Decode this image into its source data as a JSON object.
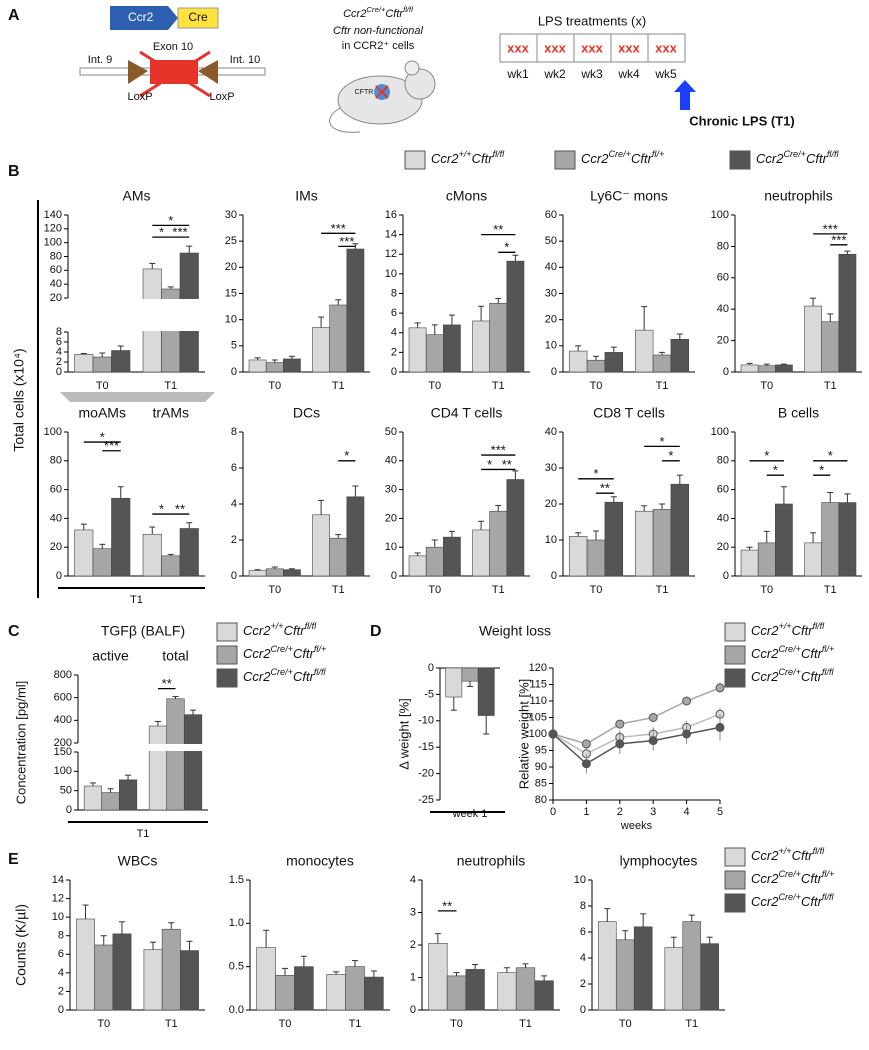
{
  "panel_labels": [
    "A",
    "B",
    "C",
    "D",
    "E"
  ],
  "panel_a": {
    "ccr2": "Ccr2",
    "cre": "Cre",
    "exon": "Exon 10",
    "int9": "Int. 9",
    "int10": "Int. 10",
    "loxp": [
      "LoxP",
      "LoxP"
    ],
    "genotype": "Ccr2Cre/+Cftrfl/fl",
    "line2": "Cftr non-functional",
    "line3": "in CCR2⁺ cells",
    "mouse_label": "CFTR",
    "lps_title": "LPS treatments (x)",
    "lps_marks": [
      "xxx",
      "xxx",
      "xxx",
      "xxx",
      "xxx"
    ],
    "weeks": [
      "wk1",
      "wk2",
      "wk3",
      "wk4",
      "wk5"
    ],
    "chronic": "Chronic LPS (T1)"
  },
  "genotypes": [
    {
      "name": "Ccr2+/+Cftrfl/fl",
      "color": "#d9d9d9"
    },
    {
      "name": "Ccr2Cre/+Cftrfl/+",
      "color": "#a6a6a6"
    },
    {
      "name": "Ccr2Cre/+Cftrfl/fl",
      "color": "#555555"
    }
  ],
  "panel_b_ylabel": "Total cells (x10⁴)",
  "panel_e_ylabel": "Counts (K/µl)",
  "chart_data": [
    {
      "type": "bar",
      "title": "AMs",
      "categories": [
        "T0",
        "T1"
      ],
      "ysegments": [
        {
          "ylim": [
            0,
            8
          ],
          "yticks": [
            0,
            2,
            4,
            6,
            8
          ]
        },
        {
          "ylim": [
            20,
            140
          ],
          "yticks": [
            20,
            40,
            60,
            80,
            100,
            120,
            140
          ]
        }
      ],
      "series": [
        {
          "values": [
            3.5,
            62
          ],
          "errors": [
            0.2,
            8
          ]
        },
        {
          "values": [
            3.0,
            33
          ],
          "errors": [
            0.8,
            3
          ]
        },
        {
          "values": [
            4.3,
            85
          ],
          "errors": [
            0.9,
            10
          ]
        }
      ],
      "annotations": [
        {
          "text": "*",
          "category": 1,
          "from": 0,
          "to": 2,
          "y": 125
        },
        {
          "text": "*",
          "category": 1,
          "from": 0,
          "to": 1,
          "y": 108
        },
        {
          "text": "***",
          "category": 1,
          "from": 1,
          "to": 2,
          "y": 108
        }
      ]
    },
    {
      "type": "bar",
      "title": "IMs",
      "categories": [
        "T0",
        "T1"
      ],
      "ylim": [
        0,
        30
      ],
      "yticks": [
        0,
        5,
        10,
        15,
        20,
        25,
        30
      ],
      "series": [
        {
          "values": [
            2.3,
            8.5
          ],
          "errors": [
            0.4,
            2
          ]
        },
        {
          "values": [
            1.8,
            12.8
          ],
          "errors": [
            0.5,
            1
          ]
        },
        {
          "values": [
            2.5,
            23.5
          ],
          "errors": [
            0.5,
            1
          ]
        }
      ],
      "annotations": [
        {
          "text": "***",
          "category": 1,
          "from": 0,
          "to": 2,
          "y": 26.5
        },
        {
          "text": "***",
          "category": 1,
          "from": 1,
          "to": 2,
          "y": 24
        }
      ]
    },
    {
      "type": "bar",
      "title": "cMons",
      "categories": [
        "T0",
        "T1"
      ],
      "ylim": [
        0,
        16
      ],
      "yticks": [
        0,
        2,
        4,
        6,
        8,
        10,
        12,
        14,
        16
      ],
      "series": [
        {
          "values": [
            4.5,
            5.2
          ],
          "errors": [
            0.5,
            1.5
          ]
        },
        {
          "values": [
            3.8,
            7.0
          ],
          "errors": [
            1,
            0.5
          ]
        },
        {
          "values": [
            4.8,
            11.3
          ],
          "errors": [
            1,
            0.6
          ]
        }
      ],
      "annotations": [
        {
          "text": "**",
          "category": 1,
          "from": 0,
          "to": 2,
          "y": 14
        },
        {
          "text": "*",
          "category": 1,
          "from": 1,
          "to": 2,
          "y": 12.2
        }
      ]
    },
    {
      "type": "bar",
      "title": "Ly6C⁻ mons",
      "categories": [
        "T0",
        "T1"
      ],
      "ylim": [
        0,
        60
      ],
      "yticks": [
        0,
        10,
        20,
        30,
        40,
        50,
        60
      ],
      "series": [
        {
          "values": [
            8,
            16
          ],
          "errors": [
            2,
            9
          ]
        },
        {
          "values": [
            4.5,
            6.5
          ],
          "errors": [
            1.5,
            1
          ]
        },
        {
          "values": [
            7.5,
            12.5
          ],
          "errors": [
            2,
            2
          ]
        }
      ],
      "annotations": []
    },
    {
      "type": "bar",
      "title": "neutrophils",
      "categories": [
        "T0",
        "T1"
      ],
      "ylim": [
        0,
        100
      ],
      "yticks": [
        0,
        20,
        40,
        60,
        80,
        100
      ],
      "series": [
        {
          "values": [
            4.5,
            42
          ],
          "errors": [
            1,
            5
          ]
        },
        {
          "values": [
            4,
            32
          ],
          "errors": [
            1,
            5
          ]
        },
        {
          "values": [
            4.5,
            75
          ],
          "errors": [
            0.5,
            2
          ]
        }
      ],
      "annotations": [
        {
          "text": "***",
          "category": 1,
          "from": 0,
          "to": 2,
          "y": 88
        },
        {
          "text": "***",
          "category": 1,
          "from": 1,
          "to": 2,
          "y": 81
        }
      ]
    },
    {
      "type": "bar",
      "categories": [
        "moAMs",
        "trAMs"
      ],
      "group_label": "T1",
      "ylim": [
        0,
        100
      ],
      "yticks": [
        0,
        20,
        40,
        60,
        80,
        100
      ],
      "series": [
        {
          "values": [
            32,
            29
          ],
          "errors": [
            4,
            5
          ]
        },
        {
          "values": [
            19,
            14
          ],
          "errors": [
            3,
            1
          ]
        },
        {
          "values": [
            54,
            33
          ],
          "errors": [
            8,
            4
          ]
        }
      ],
      "annotations": [
        {
          "text": "*",
          "category": 0,
          "from": 0,
          "to": 2,
          "y": 93
        },
        {
          "text": "***",
          "category": 0,
          "from": 1,
          "to": 2,
          "y": 87
        },
        {
          "text": "*",
          "category": 1,
          "from": 0,
          "to": 1,
          "y": 43
        },
        {
          "text": "**",
          "category": 1,
          "from": 1,
          "to": 2,
          "y": 43
        }
      ]
    },
    {
      "type": "bar",
      "title": "DCs",
      "categories": [
        "T0",
        "T1"
      ],
      "ylim": [
        0,
        8
      ],
      "yticks": [
        0,
        2,
        4,
        6,
        8
      ],
      "series": [
        {
          "values": [
            0.3,
            3.4
          ],
          "errors": [
            0.05,
            0.8
          ]
        },
        {
          "values": [
            0.4,
            2.1
          ],
          "errors": [
            0.1,
            0.2
          ]
        },
        {
          "values": [
            0.35,
            4.4
          ],
          "errors": [
            0.05,
            0.6
          ]
        }
      ],
      "annotations": [
        {
          "text": "*",
          "category": 1,
          "from": 1,
          "to": 2,
          "y": 6.4
        }
      ]
    },
    {
      "type": "bar",
      "title": "CD4 T cells",
      "categories": [
        "T0",
        "T1"
      ],
      "ylim": [
        0,
        50
      ],
      "yticks": [
        0,
        10,
        20,
        30,
        40,
        50
      ],
      "series": [
        {
          "values": [
            7,
            16
          ],
          "errors": [
            1,
            3
          ]
        },
        {
          "values": [
            10,
            22.5
          ],
          "errors": [
            2.5,
            2
          ]
        },
        {
          "values": [
            13.5,
            33.5
          ],
          "errors": [
            2,
            3
          ]
        }
      ],
      "annotations": [
        {
          "text": "***",
          "category": 1,
          "from": 0,
          "to": 2,
          "y": 42
        },
        {
          "text": "*",
          "category": 1,
          "from": 0,
          "to": 1,
          "y": 37
        },
        {
          "text": "**",
          "category": 1,
          "from": 1,
          "to": 2,
          "y": 37
        }
      ]
    },
    {
      "type": "bar",
      "title": "CD8 T cells",
      "categories": [
        "T0",
        "T1"
      ],
      "ylim": [
        0,
        40
      ],
      "yticks": [
        0,
        10,
        20,
        30,
        40
      ],
      "series": [
        {
          "values": [
            11,
            18
          ],
          "errors": [
            1,
            1.5
          ]
        },
        {
          "values": [
            10,
            18.5
          ],
          "errors": [
            2.5,
            1.5
          ]
        },
        {
          "values": [
            20.5,
            25.5
          ],
          "errors": [
            1.5,
            2.5
          ]
        }
      ],
      "annotations": [
        {
          "text": "*",
          "category": 0,
          "from": 0,
          "to": 2,
          "y": 27
        },
        {
          "text": "**",
          "category": 0,
          "from": 1,
          "to": 2,
          "y": 23
        },
        {
          "text": "*",
          "category": 1,
          "from": 0,
          "to": 2,
          "y": 36
        },
        {
          "text": "*",
          "category": 1,
          "from": 1,
          "to": 2,
          "y": 32
        }
      ]
    },
    {
      "type": "bar",
      "title": "B cells",
      "categories": [
        "T0",
        "T1"
      ],
      "ylim": [
        0,
        100
      ],
      "yticks": [
        0,
        20,
        40,
        60,
        80,
        100
      ],
      "series": [
        {
          "values": [
            18,
            23
          ],
          "errors": [
            2,
            7
          ]
        },
        {
          "values": [
            23,
            51
          ],
          "errors": [
            8,
            7
          ]
        },
        {
          "values": [
            50,
            51
          ],
          "errors": [
            12,
            6
          ]
        }
      ],
      "annotations": [
        {
          "text": "*",
          "category": 0,
          "from": 0,
          "to": 2,
          "y": 80
        },
        {
          "text": "*",
          "category": 0,
          "from": 1,
          "to": 2,
          "y": 70
        },
        {
          "text": "*",
          "category": 1,
          "from": 0,
          "to": 2,
          "y": 80
        },
        {
          "text": "*",
          "category": 1,
          "from": 0,
          "to": 1,
          "y": 70
        }
      ]
    },
    {
      "type": "bar",
      "title": "TGFβ (BALF)",
      "ylabel": "Concentration [pg/ml]",
      "categories": [
        "active",
        "total"
      ],
      "group_label": "T1",
      "ysegments": [
        {
          "ylim": [
            0,
            150
          ],
          "yticks": [
            0,
            50,
            100,
            150
          ]
        },
        {
          "ylim": [
            200,
            800
          ],
          "yticks": [
            200,
            400,
            600,
            800
          ]
        }
      ],
      "series": [
        {
          "values": [
            62,
            350
          ],
          "errors": [
            8,
            40
          ]
        },
        {
          "values": [
            45,
            590
          ],
          "errors": [
            10,
            20
          ]
        },
        {
          "values": [
            78,
            450
          ],
          "errors": [
            12,
            40
          ]
        }
      ],
      "annotations": [
        {
          "text": "**",
          "category": 1,
          "from": 0,
          "to": 1,
          "y": 680
        }
      ]
    },
    {
      "type": "bar",
      "title": "Weight loss",
      "ylabel": "Δ weight [%]",
      "categories": [
        "week 1"
      ],
      "ylim": [
        -25,
        0
      ],
      "yticks": [
        0,
        -5,
        -10,
        -15,
        -20,
        -25
      ],
      "series": [
        {
          "values": [
            -5.5
          ],
          "errors": [
            2.5
          ]
        },
        {
          "values": [
            -2.5
          ],
          "errors": [
            1
          ]
        },
        {
          "values": [
            -9
          ],
          "errors": [
            3.5
          ]
        }
      ],
      "annotations": []
    },
    {
      "type": "line",
      "ylabel": "Relative weight [%]",
      "xlabel": "weeks",
      "x": [
        0,
        1,
        2,
        3,
        4,
        5
      ],
      "xlim": [
        0,
        5
      ],
      "xticks": [
        0,
        1,
        2,
        3,
        4,
        5
      ],
      "ylim": [
        80,
        120
      ],
      "yticks": [
        80,
        85,
        90,
        95,
        100,
        105,
        110,
        115,
        120
      ],
      "series": [
        {
          "values": [
            100,
            94,
            99,
            100,
            102,
            106
          ],
          "errors": [
            0,
            2,
            2,
            2,
            2,
            2
          ]
        },
        {
          "values": [
            100,
            97,
            103,
            105,
            110,
            114
          ],
          "errors": [
            0,
            1,
            1,
            1,
            1,
            1.5
          ]
        },
        {
          "values": [
            100,
            91,
            97,
            98,
            100,
            102
          ],
          "errors": [
            0,
            3,
            3,
            3,
            3,
            4
          ]
        }
      ]
    },
    {
      "type": "bar",
      "title": "WBCs",
      "categories": [
        "T0",
        "T1"
      ],
      "ylim": [
        0,
        14
      ],
      "yticks": [
        0,
        2,
        4,
        6,
        8,
        10,
        12,
        14
      ],
      "series": [
        {
          "values": [
            9.8,
            6.5
          ],
          "errors": [
            1.5,
            0.8
          ]
        },
        {
          "values": [
            7.0,
            8.7
          ],
          "errors": [
            1,
            0.7
          ]
        },
        {
          "values": [
            8.2,
            6.4
          ],
          "errors": [
            1.3,
            1.0
          ]
        }
      ],
      "annotations": []
    },
    {
      "type": "bar",
      "title": "monocytes",
      "categories": [
        "T0",
        "T1"
      ],
      "ylim": [
        0,
        1.5
      ],
      "yticks": [
        {
          "value": 0,
          "label": "0.0"
        },
        0.5,
        {
          "value": 1,
          "label": "1.0"
        },
        1.5
      ],
      "series": [
        {
          "values": [
            0.72,
            0.41
          ],
          "errors": [
            0.2,
            0.03
          ]
        },
        {
          "values": [
            0.4,
            0.5
          ],
          "errors": [
            0.08,
            0.07
          ]
        },
        {
          "values": [
            0.5,
            0.38
          ],
          "errors": [
            0.12,
            0.07
          ]
        }
      ],
      "annotations": []
    },
    {
      "type": "bar",
      "title": "neutrophils",
      "categories": [
        "T0",
        "T1"
      ],
      "ylim": [
        0,
        4
      ],
      "yticks": [
        0,
        1,
        2,
        3,
        4
      ],
      "series": [
        {
          "values": [
            2.05,
            1.15
          ],
          "errors": [
            0.3,
            0.15
          ]
        },
        {
          "values": [
            1.05,
            1.3
          ],
          "errors": [
            0.1,
            0.12
          ]
        },
        {
          "values": [
            1.25,
            0.9
          ],
          "errors": [
            0.15,
            0.15
          ]
        }
      ],
      "annotations": [
        {
          "text": "**",
          "category": 0,
          "from": 0,
          "to": 1,
          "y": 3.05
        }
      ]
    },
    {
      "type": "bar",
      "title": "lymphocytes",
      "categories": [
        "T0",
        "T1"
      ],
      "ylim": [
        0,
        10
      ],
      "yticks": [
        0,
        2,
        4,
        6,
        8,
        10
      ],
      "series": [
        {
          "values": [
            6.8,
            4.8
          ],
          "errors": [
            1,
            0.8
          ]
        },
        {
          "values": [
            5.4,
            6.8
          ],
          "errors": [
            0.7,
            0.5
          ]
        },
        {
          "values": [
            6.4,
            5.1
          ],
          "errors": [
            1,
            0.5
          ]
        }
      ],
      "annotations": []
    }
  ]
}
